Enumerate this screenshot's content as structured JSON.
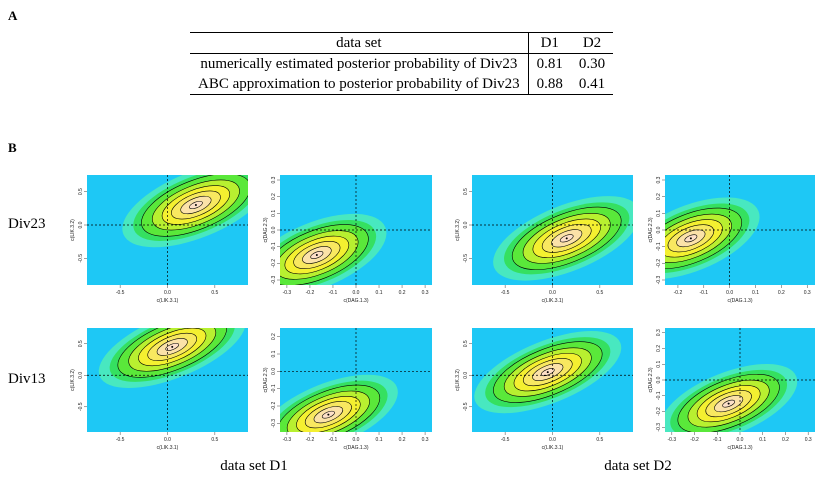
{
  "panel_a": {
    "label": "A",
    "table": {
      "header": [
        "data set",
        "D1",
        "D2"
      ],
      "rows": [
        [
          "numerically estimated posterior probability of Div23",
          "0.81",
          "0.30"
        ],
        [
          "ABC approximation to posterior probability of Div23",
          "0.88",
          "0.41"
        ]
      ]
    }
  },
  "panel_b": {
    "label": "B",
    "row_labels": [
      "Div23",
      "Div13"
    ],
    "column_labels": [
      "data set D1",
      "data set D2"
    ]
  },
  "chart_data": [
    {
      "type": "density",
      "xlabel": "c(LIK.3.1)",
      "ylabel": "c(LIK.3.2)",
      "xlim": [
        -0.85,
        0.85
      ],
      "ylim": [
        -0.9,
        0.75
      ],
      "xticks": [
        -0.5,
        {
          "value": 0,
          "label": "0.0"
        },
        0.5
      ],
      "yticks": [
        -0.5,
        {
          "value": 0,
          "label": "0.0"
        },
        0.5
      ],
      "peak": {
        "x": 0.3,
        "y": 0.3
      }
    },
    {
      "type": "density",
      "xlabel": "c(DAG.1.3)",
      "ylabel": "c(DAG.2.3)",
      "xlim": [
        -0.33,
        0.33
      ],
      "ylim": [
        -0.33,
        0.33
      ],
      "xticks": [
        -0.3,
        -0.2,
        -0.1,
        {
          "value": 0,
          "label": "0.0"
        },
        0.1,
        0.2,
        0.3
      ],
      "yticks": [
        -0.3,
        -0.2,
        -0.1,
        {
          "value": 0,
          "label": "0.0"
        },
        0.1,
        0.2,
        0.3
      ],
      "peak": {
        "x": -0.17,
        "y": -0.15
      }
    },
    {
      "type": "density",
      "xlabel": "c(LIK.3.1)",
      "ylabel": "c(LIK.3.2)",
      "xlim": [
        -0.85,
        0.85
      ],
      "ylim": [
        -0.9,
        0.75
      ],
      "xticks": [
        -0.5,
        {
          "value": 0,
          "label": "0.0"
        },
        0.5
      ],
      "yticks": [
        -0.5,
        {
          "value": 0,
          "label": "0.0"
        },
        0.5
      ],
      "peak": {
        "x": 0.15,
        "y": -0.2
      }
    },
    {
      "type": "density",
      "xlabel": "c(DAG.1.3)",
      "ylabel": "c(DAG.2.3)",
      "xlim": [
        -0.25,
        0.33
      ],
      "ylim": [
        -0.33,
        0.33
      ],
      "xticks": [
        -0.2,
        -0.1,
        {
          "value": 0,
          "label": "0.0"
        },
        0.1,
        0.2,
        0.3
      ],
      "yticks": [
        -0.3,
        -0.2,
        -0.1,
        {
          "value": 0,
          "label": "0.0"
        },
        0.1,
        0.2,
        0.3
      ],
      "peak": {
        "x": -0.15,
        "y": -0.05
      }
    },
    {
      "type": "density",
      "xlabel": "c(LIK.3.1)",
      "ylabel": "c(LIK.3.2)",
      "xlim": [
        -0.85,
        0.85
      ],
      "ylim": [
        -0.9,
        0.75
      ],
      "xticks": [
        -0.5,
        {
          "value": 0,
          "label": "0.0"
        },
        0.5
      ],
      "yticks": [
        -0.5,
        {
          "value": 0,
          "label": "0.0"
        },
        0.5
      ],
      "peak": {
        "x": 0.05,
        "y": 0.45
      }
    },
    {
      "type": "density",
      "xlabel": "c(DAG.1.3)",
      "ylabel": "c(DAG.2.3)",
      "xlim": [
        -0.33,
        0.33
      ],
      "ylim": [
        -0.35,
        0.25
      ],
      "xticks": [
        -0.3,
        -0.2,
        -0.1,
        {
          "value": 0,
          "label": "0.0"
        },
        0.1,
        0.2,
        0.3
      ],
      "yticks": [
        -0.3,
        -0.2,
        -0.1,
        {
          "value": 0,
          "label": "0.0"
        },
        0.1,
        0.2
      ],
      "peak": {
        "x": -0.12,
        "y": -0.25
      }
    },
    {
      "type": "density",
      "xlabel": "c(LIK.3.1)",
      "ylabel": "c(LIK.3.2)",
      "xlim": [
        -0.85,
        0.85
      ],
      "ylim": [
        -0.9,
        0.75
      ],
      "xticks": [
        -0.5,
        {
          "value": 0,
          "label": "0.0"
        },
        0.5
      ],
      "yticks": [
        -0.5,
        {
          "value": 0,
          "label": "0.0"
        },
        0.5
      ],
      "peak": {
        "x": -0.05,
        "y": 0.05
      }
    },
    {
      "type": "density",
      "xlabel": "c(DAG.1.3)",
      "ylabel": "c(DAG.2.3)",
      "xlim": [
        -0.33,
        0.33
      ],
      "ylim": [
        -0.33,
        0.33
      ],
      "xticks": [
        -0.3,
        -0.2,
        -0.1,
        {
          "value": 0,
          "label": "0.0"
        },
        0.1,
        0.2,
        0.3
      ],
      "yticks": [
        -0.3,
        -0.2,
        -0.1,
        {
          "value": 0,
          "label": "0.0"
        },
        0.1,
        0.2,
        0.3
      ],
      "peak": {
        "x": -0.05,
        "y": -0.15
      }
    }
  ]
}
